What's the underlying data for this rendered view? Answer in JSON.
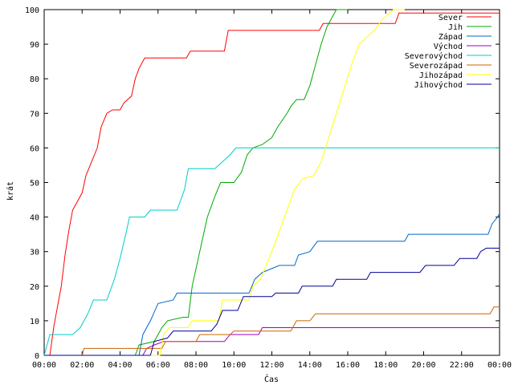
{
  "chart_data": {
    "type": "line",
    "title": "",
    "xlabel": "Čas",
    "ylabel": "krát",
    "xlim": [
      0,
      24
    ],
    "ylim": [
      0,
      100
    ],
    "xticks": [
      "00:00",
      "02:00",
      "04:00",
      "06:00",
      "08:00",
      "10:00",
      "12:00",
      "14:00",
      "16:00",
      "18:00",
      "20:00",
      "22:00",
      "00:00"
    ],
    "yticks": [
      0,
      10,
      20,
      30,
      40,
      50,
      60,
      70,
      80,
      90,
      100
    ],
    "grid": false,
    "legend_position": "top-right",
    "series": [
      {
        "name": "Sever",
        "color": "#ff0000",
        "points": [
          [
            0,
            0
          ],
          [
            0.3,
            0
          ],
          [
            0.5,
            8
          ],
          [
            0.7,
            14
          ],
          [
            0.9,
            20
          ],
          [
            1.1,
            29
          ],
          [
            1.3,
            36
          ],
          [
            1.5,
            42
          ],
          [
            1.7,
            44
          ],
          [
            2.0,
            47
          ],
          [
            2.2,
            52
          ],
          [
            2.5,
            56
          ],
          [
            2.8,
            60
          ],
          [
            3.0,
            66
          ],
          [
            3.3,
            70
          ],
          [
            3.6,
            71
          ],
          [
            4.0,
            71
          ],
          [
            4.2,
            73
          ],
          [
            4.6,
            75
          ],
          [
            4.8,
            80
          ],
          [
            5.0,
            83
          ],
          [
            5.3,
            86
          ],
          [
            7.5,
            86
          ],
          [
            7.7,
            88
          ],
          [
            9.5,
            88
          ],
          [
            9.7,
            94
          ],
          [
            14.5,
            94
          ],
          [
            14.7,
            96
          ],
          [
            18.5,
            96
          ],
          [
            18.7,
            99
          ],
          [
            24,
            99
          ]
        ]
      },
      {
        "name": "Jih",
        "color": "#00aa00",
        "points": [
          [
            0,
            0
          ],
          [
            4.8,
            0
          ],
          [
            5.0,
            3
          ],
          [
            5.8,
            4
          ],
          [
            6.2,
            8
          ],
          [
            6.5,
            10
          ],
          [
            7.3,
            11
          ],
          [
            7.6,
            11
          ],
          [
            7.8,
            20
          ],
          [
            8.2,
            30
          ],
          [
            8.6,
            40
          ],
          [
            9.0,
            46
          ],
          [
            9.3,
            50
          ],
          [
            10.0,
            50
          ],
          [
            10.4,
            53
          ],
          [
            10.7,
            58
          ],
          [
            11.0,
            60
          ],
          [
            11.5,
            61
          ],
          [
            12.0,
            63
          ],
          [
            12.3,
            66
          ],
          [
            12.8,
            70
          ],
          [
            13.0,
            72
          ],
          [
            13.3,
            74
          ],
          [
            13.7,
            74
          ],
          [
            14.0,
            78
          ],
          [
            14.3,
            84
          ],
          [
            14.6,
            90
          ],
          [
            14.9,
            95
          ],
          [
            15.2,
            98
          ],
          [
            15.4,
            100
          ],
          [
            16.0,
            100
          ]
        ]
      },
      {
        "name": "Západ",
        "color": "#0066cc",
        "points": [
          [
            0,
            0
          ],
          [
            5.0,
            0
          ],
          [
            5.2,
            6
          ],
          [
            5.6,
            10
          ],
          [
            6.0,
            15
          ],
          [
            6.8,
            16
          ],
          [
            7.0,
            18
          ],
          [
            10.8,
            18
          ],
          [
            11.1,
            22
          ],
          [
            11.5,
            24
          ],
          [
            12.4,
            26
          ],
          [
            13.2,
            26
          ],
          [
            13.4,
            29
          ],
          [
            14.0,
            30
          ],
          [
            14.4,
            33
          ],
          [
            19.0,
            33
          ],
          [
            19.2,
            35
          ],
          [
            23.4,
            35
          ],
          [
            23.6,
            38
          ],
          [
            23.9,
            40
          ],
          [
            24,
            41
          ]
        ]
      },
      {
        "name": "Východ",
        "color": "#9900cc",
        "points": [
          [
            0,
            0
          ],
          [
            5.2,
            0
          ],
          [
            5.4,
            2
          ],
          [
            5.8,
            3
          ],
          [
            6.3,
            4
          ],
          [
            7.0,
            4
          ],
          [
            9.5,
            4
          ],
          [
            9.8,
            6
          ],
          [
            10.0,
            6
          ],
          [
            11.0,
            6
          ],
          [
            11.3,
            6
          ],
          [
            11.5,
            8
          ],
          [
            24,
            8
          ]
        ]
      },
      {
        "name": "Severovýchod",
        "color": "#00cccc",
        "points": [
          [
            0,
            0
          ],
          [
            0.1,
            2
          ],
          [
            0.3,
            6
          ],
          [
            1.5,
            6
          ],
          [
            1.9,
            8
          ],
          [
            2.3,
            12
          ],
          [
            2.6,
            16
          ],
          [
            3.3,
            16
          ],
          [
            3.7,
            22
          ],
          [
            4.0,
            28
          ],
          [
            4.3,
            35
          ],
          [
            4.5,
            40
          ],
          [
            5.3,
            40
          ],
          [
            5.6,
            42
          ],
          [
            7.0,
            42
          ],
          [
            7.4,
            48
          ],
          [
            7.6,
            54
          ],
          [
            9.0,
            54
          ],
          [
            9.4,
            56
          ],
          [
            9.8,
            58
          ],
          [
            10.1,
            60
          ],
          [
            24,
            60
          ]
        ]
      },
      {
        "name": "Severozápad",
        "color": "#cc6600",
        "points": [
          [
            0,
            0
          ],
          [
            2.0,
            0
          ],
          [
            2.1,
            2
          ],
          [
            6.2,
            2
          ],
          [
            6.4,
            4
          ],
          [
            8.0,
            4
          ],
          [
            8.2,
            6
          ],
          [
            9.8,
            6
          ],
          [
            10.0,
            7
          ],
          [
            13.0,
            7
          ],
          [
            13.3,
            10
          ],
          [
            14.0,
            10
          ],
          [
            14.3,
            12
          ],
          [
            23.5,
            12
          ],
          [
            23.7,
            14
          ],
          [
            24,
            14
          ]
        ]
      },
      {
        "name": "Jihozápad",
        "color": "#ffff00",
        "points": [
          [
            0,
            0
          ],
          [
            6.1,
            0
          ],
          [
            6.3,
            6
          ],
          [
            6.6,
            8
          ],
          [
            7.6,
            8
          ],
          [
            7.8,
            10
          ],
          [
            9.2,
            10
          ],
          [
            9.4,
            16
          ],
          [
            10.8,
            16
          ],
          [
            11.0,
            20
          ],
          [
            11.4,
            22
          ],
          [
            12.0,
            30
          ],
          [
            12.4,
            36
          ],
          [
            12.8,
            42
          ],
          [
            13.2,
            48
          ],
          [
            13.6,
            51
          ],
          [
            14.2,
            52
          ],
          [
            14.6,
            56
          ],
          [
            15.0,
            63
          ],
          [
            15.4,
            70
          ],
          [
            15.8,
            77
          ],
          [
            16.2,
            84
          ],
          [
            16.6,
            90
          ],
          [
            17.0,
            92
          ],
          [
            17.4,
            94
          ],
          [
            17.8,
            97
          ],
          [
            18.2,
            99
          ],
          [
            18.4,
            100
          ],
          [
            19.0,
            100
          ]
        ]
      },
      {
        "name": "Jihovýchod",
        "color": "#000099",
        "points": [
          [
            0,
            0
          ],
          [
            5.6,
            0
          ],
          [
            5.8,
            4
          ],
          [
            6.5,
            5
          ],
          [
            6.8,
            7
          ],
          [
            8.8,
            7
          ],
          [
            9.1,
            9
          ],
          [
            9.4,
            13
          ],
          [
            10.2,
            13
          ],
          [
            10.5,
            17
          ],
          [
            12.0,
            17
          ],
          [
            12.2,
            18
          ],
          [
            13.4,
            18
          ],
          [
            13.6,
            20
          ],
          [
            15.2,
            20
          ],
          [
            15.4,
            22
          ],
          [
            17.0,
            22
          ],
          [
            17.2,
            24
          ],
          [
            19.8,
            24
          ],
          [
            20.1,
            26
          ],
          [
            21.6,
            26
          ],
          [
            21.9,
            28
          ],
          [
            22.8,
            28
          ],
          [
            23.0,
            30
          ],
          [
            23.3,
            31
          ],
          [
            24,
            31
          ]
        ]
      }
    ]
  }
}
